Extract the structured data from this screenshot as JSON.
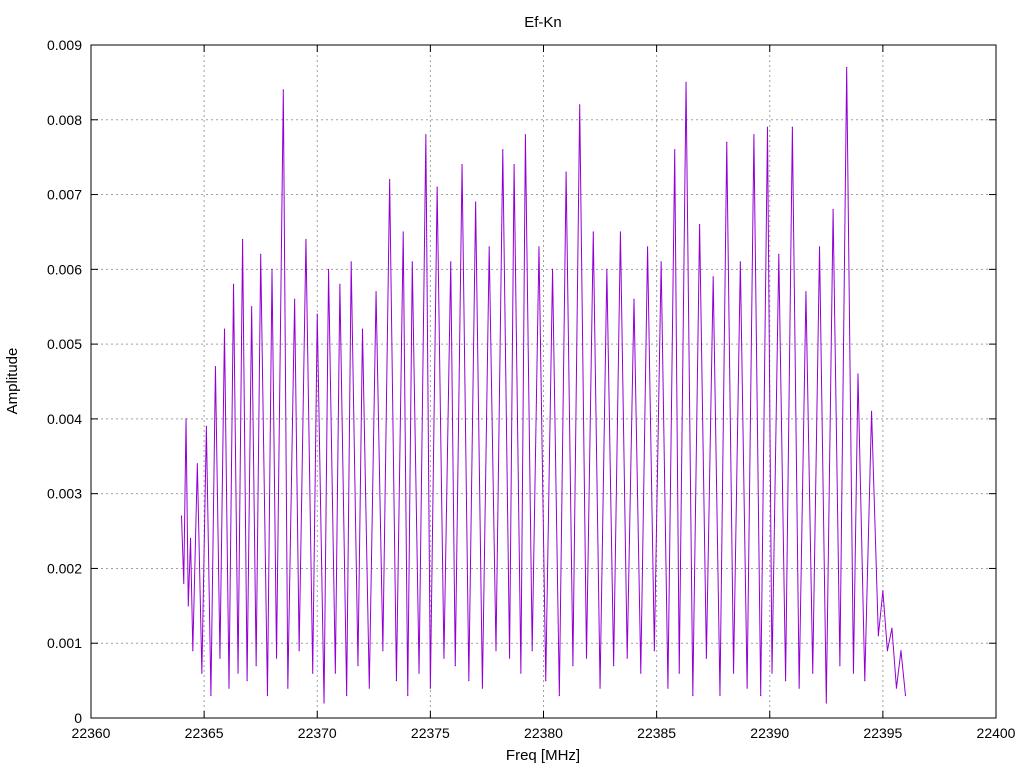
{
  "chart_data": {
    "type": "line",
    "title": "Ef-Kn",
    "xlabel": "Freq [MHz]",
    "ylabel": "Amplitude",
    "xlim": [
      22360,
      22400
    ],
    "ylim": [
      0,
      0.009
    ],
    "x_ticks": [
      22360,
      22365,
      22370,
      22375,
      22380,
      22385,
      22390,
      22395,
      22400
    ],
    "x_tick_labels": [
      "22360",
      "22365",
      "22370",
      "22375",
      "22380",
      "22385",
      "22390",
      "22395",
      "22400"
    ],
    "y_ticks": [
      0,
      0.001,
      0.002,
      0.003,
      0.004,
      0.005,
      0.006,
      0.007,
      0.008,
      0.009
    ],
    "y_tick_labels": [
      "0",
      "0.001",
      "0.002",
      "0.003",
      "0.004",
      "0.005",
      "0.006",
      "0.007",
      "0.008",
      "0.009"
    ],
    "grid": true,
    "series": [
      {
        "color": "#9400d3",
        "x": [
          22364.0,
          22364.1,
          22364.2,
          22364.3,
          22364.4,
          22364.5,
          22364.7,
          22364.9,
          22365.1,
          22365.3,
          22365.5,
          22365.7,
          22365.9,
          22366.1,
          22366.3,
          22366.5,
          22366.7,
          22366.9,
          22367.1,
          22367.3,
          22367.5,
          22367.8,
          22368.0,
          22368.2,
          22368.5,
          22368.7,
          22369.0,
          22369.2,
          22369.5,
          22369.8,
          22370.0,
          22370.3,
          22370.5,
          22370.8,
          22371.0,
          22371.3,
          22371.5,
          22371.8,
          22372.0,
          22372.3,
          22372.6,
          22372.9,
          22373.2,
          22373.5,
          22373.8,
          22374.0,
          22374.2,
          22374.5,
          22374.8,
          22375.0,
          22375.3,
          22375.6,
          22375.9,
          22376.1,
          22376.4,
          22376.7,
          22377.0,
          22377.3,
          22377.6,
          22377.9,
          22378.2,
          22378.5,
          22378.7,
          22379.0,
          22379.2,
          22379.5,
          22379.8,
          22380.1,
          22380.4,
          22380.7,
          22381.0,
          22381.3,
          22381.6,
          22381.9,
          22382.2,
          22382.5,
          22382.8,
          22383.1,
          22383.4,
          22383.7,
          22384.0,
          22384.3,
          22384.6,
          22384.9,
          22385.2,
          22385.5,
          22385.8,
          22386.0,
          22386.3,
          22386.6,
          22386.9,
          22387.2,
          22387.5,
          22387.8,
          22388.1,
          22388.4,
          22388.7,
          22389.0,
          22389.3,
          22389.6,
          22389.9,
          22390.1,
          22390.4,
          22390.7,
          22391.0,
          22391.3,
          22391.6,
          22391.9,
          22392.2,
          22392.5,
          22392.8,
          22393.1,
          22393.4,
          22393.7,
          22393.9,
          22394.2,
          22394.5,
          22394.8,
          22395.0,
          22395.2,
          22395.4,
          22395.6,
          22395.8,
          22396.0
        ],
        "y": [
          0.0027,
          0.0018,
          0.004,
          0.0015,
          0.0024,
          0.0009,
          0.0034,
          0.0006,
          0.0039,
          0.0003,
          0.0047,
          0.0008,
          0.0052,
          0.0004,
          0.0058,
          0.0006,
          0.0064,
          0.0005,
          0.0055,
          0.0007,
          0.0062,
          0.0003,
          0.006,
          0.0008,
          0.0084,
          0.0004,
          0.0056,
          0.0009,
          0.0064,
          0.0006,
          0.0054,
          0.0002,
          0.006,
          0.0006,
          0.0058,
          0.0003,
          0.0061,
          0.0007,
          0.0052,
          0.0004,
          0.0057,
          0.0009,
          0.0072,
          0.0005,
          0.0065,
          0.0003,
          0.0061,
          0.0006,
          0.0078,
          0.0004,
          0.0071,
          0.0008,
          0.0061,
          0.0007,
          0.0074,
          0.0005,
          0.0069,
          0.0004,
          0.0063,
          0.0009,
          0.0076,
          0.0008,
          0.0074,
          0.0006,
          0.0078,
          0.0009,
          0.0063,
          0.0005,
          0.006,
          0.0003,
          0.0073,
          0.0007,
          0.0082,
          0.0008,
          0.0065,
          0.0004,
          0.006,
          0.0007,
          0.0065,
          0.0008,
          0.0056,
          0.0006,
          0.0063,
          0.0009,
          0.0061,
          0.0004,
          0.0076,
          0.0006,
          0.0085,
          0.0003,
          0.0066,
          0.0008,
          0.0059,
          0.0003,
          0.0077,
          0.0006,
          0.0061,
          0.0004,
          0.0078,
          0.0003,
          0.0079,
          0.0006,
          0.0062,
          0.0005,
          0.0079,
          0.0004,
          0.0057,
          0.0006,
          0.0063,
          0.0002,
          0.0068,
          0.0007,
          0.0087,
          0.0006,
          0.0046,
          0.0005,
          0.0041,
          0.0011,
          0.0017,
          0.0009,
          0.0012,
          0.0004,
          0.0009,
          0.0003
        ]
      }
    ]
  }
}
